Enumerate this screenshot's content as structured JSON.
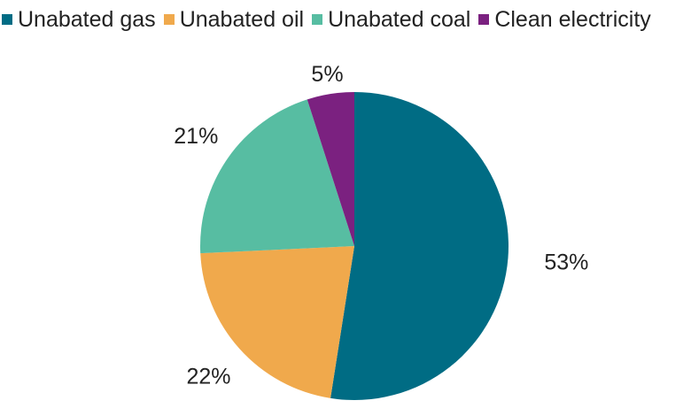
{
  "chart_data": {
    "type": "pie",
    "categories": [
      "Unabated gas",
      "Unabated oil",
      "Unabated coal",
      "Clean electricity"
    ],
    "values": [
      53,
      22,
      21,
      5
    ],
    "value_labels": [
      "53%",
      "22%",
      "21%",
      "5%"
    ],
    "colors": [
      "#006C84",
      "#F0A94C",
      "#57BDA2",
      "#7B2180"
    ],
    "start_angle_deg": 0,
    "direction": "clockwise",
    "legend": "top"
  }
}
